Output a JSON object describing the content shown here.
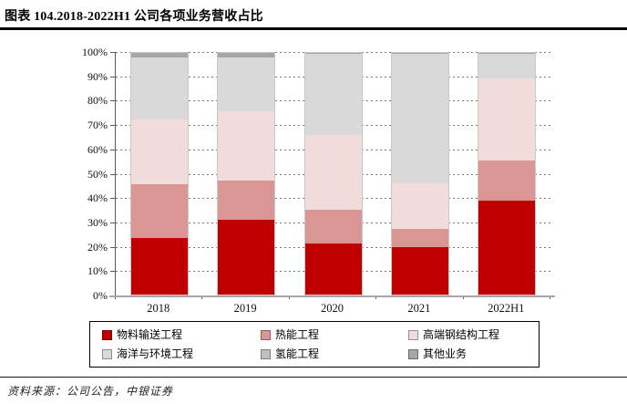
{
  "header": {
    "title": "图表 104.2018-2022H1 公司各项业务营收占比"
  },
  "footer": {
    "source": "资料来源：公司公告，中银证券"
  },
  "chart_data": {
    "type": "bar",
    "subtype": "stacked-100-percent",
    "title": "2018-2022H1 公司各项业务营收占比",
    "categories": [
      "2018",
      "2019",
      "2020",
      "2021",
      "2022H1"
    ],
    "series": [
      {
        "name": "物料输送工程",
        "color": "#c00000",
        "values": [
          23.5,
          31,
          21,
          19.5,
          39
        ]
      },
      {
        "name": "热能工程",
        "color": "#d99694",
        "values": [
          22,
          16,
          14,
          7.5,
          16.5
        ]
      },
      {
        "name": "高端钢结构工程",
        "color": "#f2dcdb",
        "values": [
          27,
          29,
          31,
          19,
          34
        ]
      },
      {
        "name": "海洋与环境工程",
        "color": "#d9d9d9",
        "values": [
          25.5,
          22,
          33.5,
          53.5,
          10
        ]
      },
      {
        "name": "氢能工程",
        "color": "#bfbfbf",
        "values": [
          0,
          0,
          0,
          0,
          0
        ]
      },
      {
        "name": "其他业务",
        "color": "#a6a6a6",
        "values": [
          2,
          2,
          0.5,
          0.5,
          0.5
        ]
      }
    ],
    "y_ticks": [
      "100%",
      "90%",
      "80%",
      "70%",
      "60%",
      "50%",
      "40%",
      "30%",
      "20%",
      "10%",
      "0%"
    ],
    "ylim": [
      0,
      100
    ],
    "unit": "percent",
    "grid": "horizontal-dashed-every-10pct",
    "legend_position": "bottom-boxed-2-rows-3-cols"
  }
}
